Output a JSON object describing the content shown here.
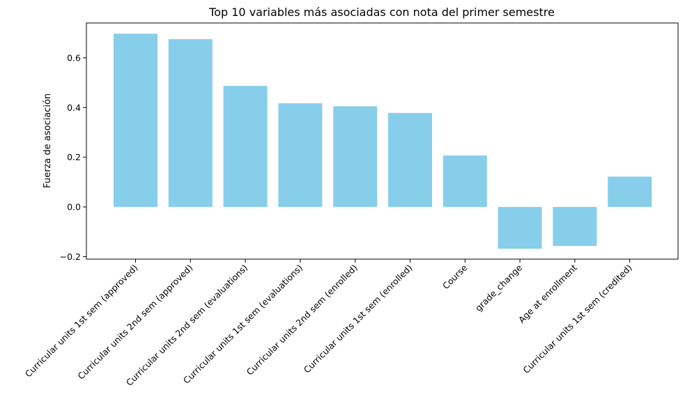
{
  "chart_data": {
    "type": "bar",
    "title": "Top 10 variables más asociadas con nota del primer semestre",
    "xlabel": "",
    "ylabel": "Fuerza de asociación",
    "categories": [
      "Curricular units 1st sem (approved)",
      "Curricular units 2nd sem (approved)",
      "Curricular units 2nd sem (evaluations)",
      "Curricular units 1st sem (evaluations)",
      "Curricular units 2nd sem (enrolled)",
      "Curricular units 1st sem (enrolled)",
      "Course",
      "grade_change",
      "Age at enrollment",
      "Curricular units 1st sem (credited)"
    ],
    "values": [
      0.697,
      0.675,
      0.487,
      0.417,
      0.405,
      0.378,
      0.207,
      -0.168,
      -0.157,
      0.122
    ],
    "ylim": [
      -0.21,
      0.74
    ],
    "yticks": [
      -0.2,
      0.0,
      0.2,
      0.4,
      0.6
    ],
    "ytick_labels": [
      "−0.2",
      "0.0",
      "0.2",
      "0.4",
      "0.6"
    ],
    "grid": false,
    "legend": "none",
    "bar_color": "#87ceeb"
  }
}
